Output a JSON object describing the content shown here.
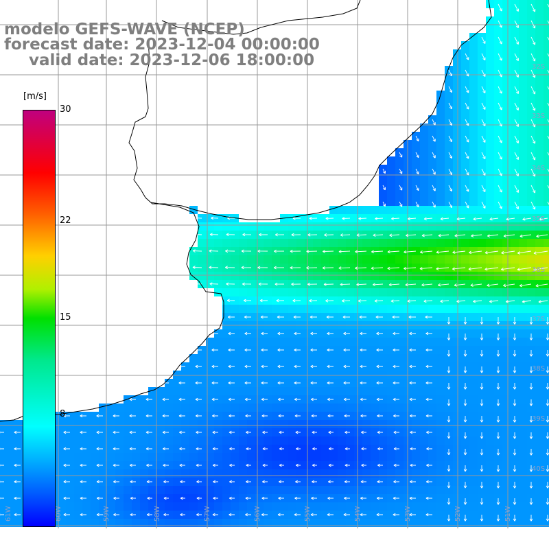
{
  "title": {
    "line1": "modelo GEFS-WAVE (NCEP)",
    "line2": "forecast date: 2023-12-04 00:00:00",
    "line3": "valid date: 2023-12-06 18:00:00"
  },
  "colorbar": {
    "unit_label": "[m/s]",
    "ticks": [
      {
        "label": "30",
        "value": 30
      },
      {
        "label": "22",
        "value": 22
      },
      {
        "label": "15",
        "value": 15
      },
      {
        "label": "8",
        "value": 8
      }
    ],
    "range": [
      0,
      30
    ],
    "colors": [
      "#0000ff",
      "#005cff",
      "#00b0ff",
      "#00ffff",
      "#00e88c",
      "#00e000",
      "#b0f000",
      "#ffd000",
      "#ff6000",
      "#ff0000",
      "#c0007f"
    ]
  },
  "map": {
    "lon_labels": [
      "61W",
      "60W",
      "59W",
      "58W",
      "57W",
      "56W",
      "55W",
      "54W",
      "53W",
      "52W",
      "51W",
      "50W"
    ],
    "lat_labels": [
      "32S",
      "33S",
      "34S",
      "35S",
      "36S",
      "37S",
      "38S",
      "39S",
      "40S"
    ]
  }
}
